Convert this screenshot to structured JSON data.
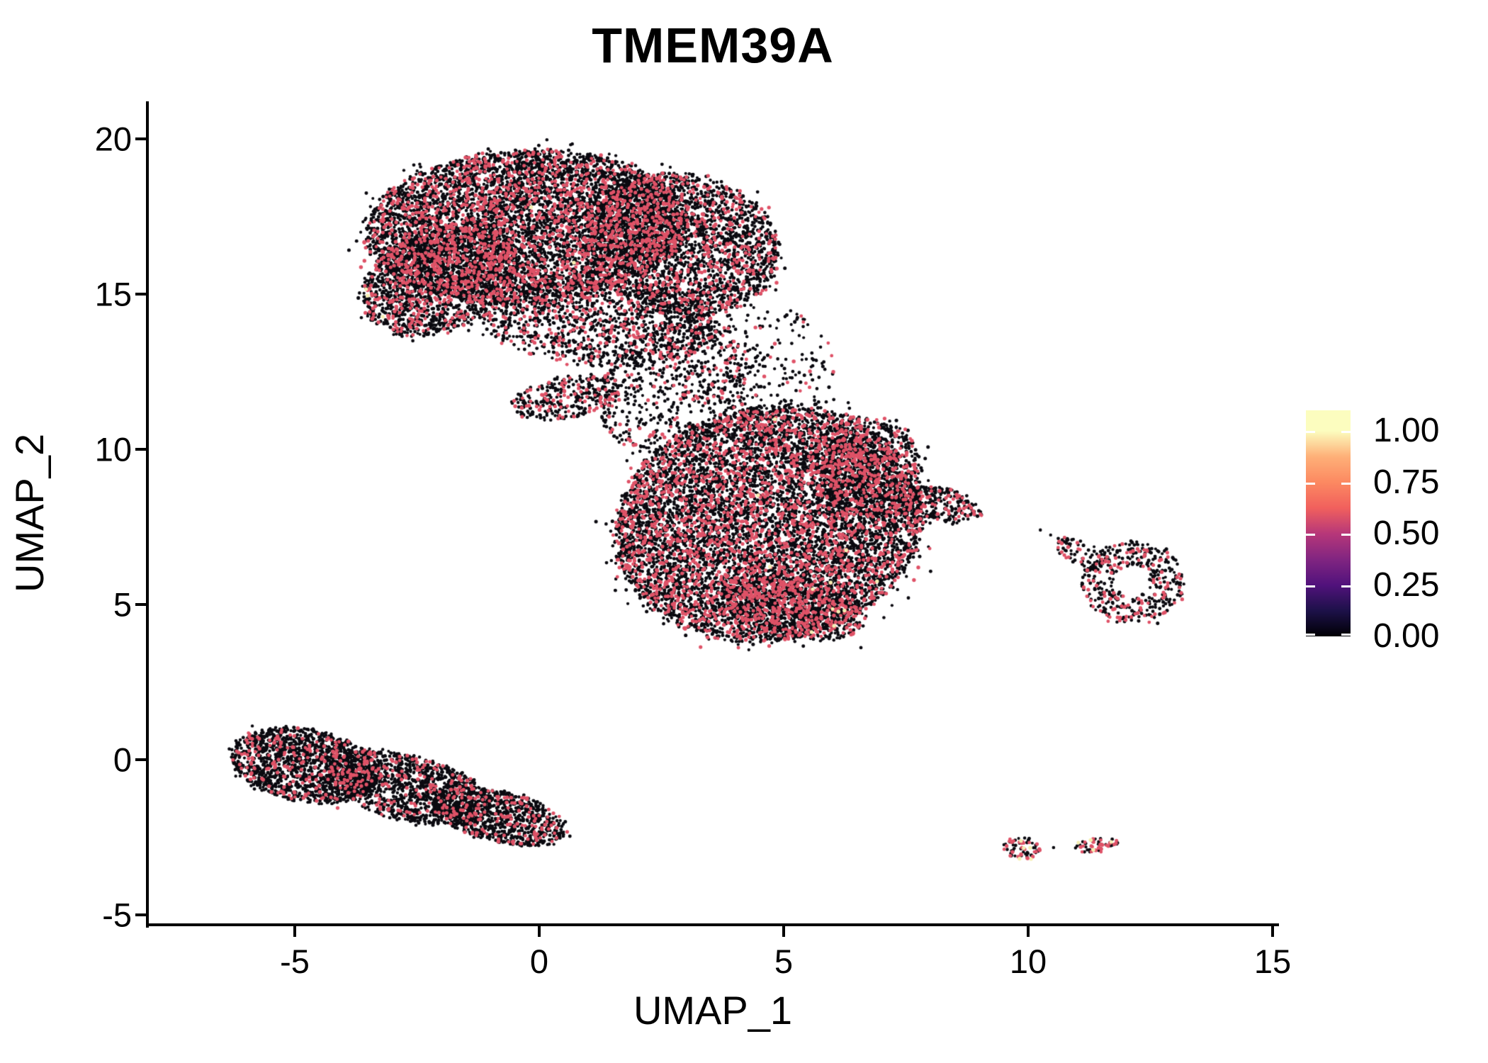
{
  "title": "TMEM39A",
  "chart_data": {
    "type": "scatter",
    "title": "TMEM39A",
    "xlabel": "UMAP_1",
    "ylabel": "UMAP_2",
    "x_ticks": [
      -5,
      0,
      5,
      10,
      15
    ],
    "y_ticks": [
      20,
      15,
      10,
      5,
      0,
      -5
    ],
    "xlim": [
      -8.0,
      15.1
    ],
    "ylim": [
      -5.3,
      21.2
    ],
    "grid": false,
    "background": "#ffffff",
    "point_palette": {
      "low": "#0b0a10",
      "mid": "#df5267",
      "high": "#f6efb3"
    },
    "legend": {
      "position": "right",
      "tick_labels": [
        "1.00",
        "0.75",
        "0.50",
        "0.25",
        "0.00"
      ],
      "tick_values": [
        1.0,
        0.75,
        0.5,
        0.25,
        0.0
      ],
      "value_max": 1.1,
      "gradient_stops": [
        {
          "v": 1.1,
          "color": "#fcfdbf"
        },
        {
          "v": 1.0,
          "color": "#fcfdbf"
        },
        {
          "v": 0.875,
          "color": "#feb078"
        },
        {
          "v": 0.75,
          "color": "#fc8961"
        },
        {
          "v": 0.625,
          "color": "#f1605d"
        },
        {
          "v": 0.5,
          "color": "#b73779"
        },
        {
          "v": 0.375,
          "color": "#812581"
        },
        {
          "v": 0.25,
          "color": "#51127c"
        },
        {
          "v": 0.125,
          "color": "#1d1149"
        },
        {
          "v": 0.0,
          "color": "#000004"
        }
      ]
    },
    "clusters": [
      {
        "name": "top-main",
        "cx": -0.3,
        "cy": 17.17,
        "rx": 3.26,
        "ry": 2.47,
        "rot": -3,
        "n": 6200,
        "p_mid": 0.21,
        "p_high": 0.0005
      },
      {
        "name": "top-right",
        "cx": 2.96,
        "cy": 16.6,
        "rx": 1.96,
        "ry": 2.28,
        "rot": 10,
        "n": 2600,
        "p_mid": 0.21,
        "p_high": 0
      },
      {
        "name": "top-left-lower",
        "cx": -2.04,
        "cy": 15.46,
        "rx": 1.67,
        "ry": 1.64,
        "rot": -22,
        "n": 1700,
        "p_mid": 0.22,
        "p_high": 0
      },
      {
        "name": "top-bottom",
        "cx": 1.22,
        "cy": 14.09,
        "rx": 2.39,
        "ry": 1.42,
        "rot": 3,
        "n": 1300,
        "p_mid": 0.2,
        "p_high": 0
      },
      {
        "name": "bridge",
        "cx": 2.74,
        "cy": 12.03,
        "rx": 1.67,
        "ry": 1.94,
        "rot": -35,
        "n": 620,
        "p_mid": 0.17,
        "p_high": 0
      },
      {
        "name": "bridge-wedge",
        "cx": 0.57,
        "cy": 11.69,
        "rx": 1.19,
        "ry": 0.68,
        "rot": -10,
        "n": 330,
        "p_mid": 0.18,
        "p_high": 0
      },
      {
        "name": "bridge-scatter",
        "cx": 4.62,
        "cy": 12.6,
        "rx": 1.38,
        "ry": 2.17,
        "rot": 0,
        "n": 230,
        "p_mid": 0.15,
        "p_high": 0
      },
      {
        "name": "mid-main",
        "cx": 4.7,
        "cy": 7.6,
        "rx": 3.15,
        "ry": 3.75,
        "rot": -8,
        "n": 8800,
        "p_mid": 0.25,
        "p_high": 0.0012
      },
      {
        "name": "mid-upper-right",
        "cx": 6.7,
        "cy": 9.4,
        "rx": 1.15,
        "ry": 1.65,
        "rot": 15,
        "n": 800,
        "p_mid": 0.24,
        "p_high": 0
      },
      {
        "name": "mid-beak",
        "cx": 8.25,
        "cy": 8.22,
        "rx": 0.85,
        "ry": 0.55,
        "rot": 10,
        "n": 240,
        "p_mid": 0.22,
        "p_high": 0
      },
      {
        "name": "mid-bottom",
        "cx": 5.2,
        "cy": 4.9,
        "rx": 1.5,
        "ry": 1.0,
        "rot": 10,
        "n": 700,
        "p_mid": 0.24,
        "p_high": 0.004
      },
      {
        "name": "island-ring",
        "cx": 12.13,
        "cy": 5.71,
        "rx": 1.04,
        "ry": 1.32,
        "rot": 0,
        "n": 420,
        "p_mid": 0.27,
        "p_high": 0,
        "inner": 0.35
      },
      {
        "name": "island-tail",
        "cx": 11.04,
        "cy": 6.67,
        "rx": 0.55,
        "ry": 0.38,
        "rot": 25,
        "n": 75,
        "p_mid": 0.2,
        "p_high": 0
      },
      {
        "name": "band-left",
        "cx": -4.8,
        "cy": -0.18,
        "rx": 1.52,
        "ry": 1.19,
        "rot": 10,
        "n": 1500,
        "p_mid": 0.13,
        "p_high": 0
      },
      {
        "name": "band-mid",
        "cx": -2.7,
        "cy": -0.91,
        "rx": 1.74,
        "ry": 1.05,
        "rot": 13,
        "n": 1300,
        "p_mid": 0.13,
        "p_high": 0
      },
      {
        "name": "band-right",
        "cx": -0.81,
        "cy": -1.83,
        "rx": 1.4,
        "ry": 0.82,
        "rot": 13,
        "n": 900,
        "p_mid": 0.14,
        "p_high": 0
      },
      {
        "name": "tiny-left",
        "cx": 9.86,
        "cy": -2.85,
        "rx": 0.4,
        "ry": 0.35,
        "rot": 0,
        "n": 70,
        "p_mid": 0.4,
        "p_high": 0.03
      },
      {
        "name": "tiny-right",
        "cx": 11.39,
        "cy": -2.76,
        "rx": 0.52,
        "ry": 0.23,
        "rot": -4,
        "n": 55,
        "p_mid": 0.42,
        "p_high": 0.04
      }
    ],
    "extra_points": {
      "low": [
        [
          10.52,
          -2.83
        ],
        [
          6.58,
          3.61
        ],
        [
          10.25,
          7.4
        ],
        [
          10.46,
          7.24
        ]
      ],
      "high": [
        [
          -3.54,
          15.16
        ],
        [
          -3.51,
          14.95
        ],
        [
          -3.2,
          14.27
        ],
        [
          5.96,
          5.71
        ],
        [
          6.0,
          4.86
        ],
        [
          6.12,
          4.77
        ],
        [
          6.03,
          4.31
        ],
        [
          5.57,
          4.11
        ],
        [
          6.91,
          5.75
        ],
        [
          10.06,
          -3.2
        ],
        [
          11.7,
          -2.65
        ]
      ]
    }
  }
}
